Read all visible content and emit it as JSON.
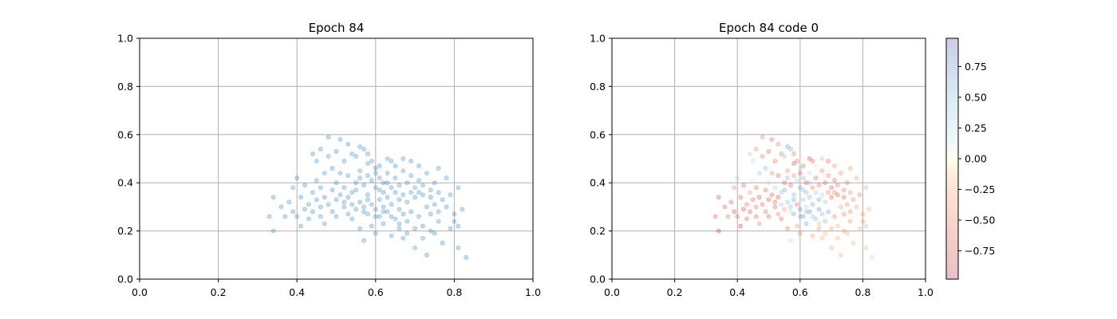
{
  "chart_data": [
    {
      "type": "scatter",
      "title": "Epoch 84",
      "xlim": [
        0,
        1
      ],
      "ylim": [
        0,
        1
      ],
      "xticks": [
        "0.0",
        "0.2",
        "0.4",
        "0.6",
        "0.8",
        "1.0"
      ],
      "yticks": [
        "0.0",
        "0.2",
        "0.4",
        "0.6",
        "0.8",
        "1.0"
      ],
      "grid": true,
      "color": "#1f77b4",
      "alpha": 0.25,
      "points_source": "shared_points"
    },
    {
      "type": "scatter",
      "title": "Epoch 84 code 0",
      "xlim": [
        0,
        1
      ],
      "ylim": [
        0,
        1
      ],
      "xticks": [
        "0.0",
        "0.2",
        "0.4",
        "0.6",
        "0.8",
        "1.0"
      ],
      "yticks": [
        "0.0",
        "0.2",
        "0.4",
        "0.6",
        "0.8",
        "1.0"
      ],
      "grid": true,
      "colormap": "RdYlBu",
      "alpha": 0.25,
      "colorbar": {
        "range": [
          -0.98,
          0.98
        ],
        "ticks": [
          -0.75,
          -0.5,
          -0.25,
          0.0,
          0.25,
          0.5,
          0.75
        ],
        "tick_labels": [
          "−0.75",
          "−0.50",
          "−0.25",
          "0.00",
          "0.25",
          "0.50",
          "0.75"
        ]
      },
      "points_source": "shared_points"
    }
  ],
  "shared_points": [
    [
      0.33,
      0.26,
      -0.6
    ],
    [
      0.34,
      0.34,
      -0.7
    ],
    [
      0.34,
      0.2,
      -0.8
    ],
    [
      0.36,
      0.3,
      -0.6
    ],
    [
      0.37,
      0.26,
      -0.5
    ],
    [
      0.38,
      0.32,
      -0.6
    ],
    [
      0.39,
      0.28,
      -0.7
    ],
    [
      0.39,
      0.38,
      -0.4
    ],
    [
      0.4,
      0.42,
      0.3
    ],
    [
      0.4,
      0.26,
      -0.6
    ],
    [
      0.41,
      0.34,
      -0.6
    ],
    [
      0.41,
      0.22,
      -0.8
    ],
    [
      0.42,
      0.29,
      -0.7
    ],
    [
      0.42,
      0.39,
      -0.6
    ],
    [
      0.43,
      0.31,
      -0.5
    ],
    [
      0.43,
      0.25,
      -0.6
    ],
    [
      0.44,
      0.36,
      -0.3
    ],
    [
      0.44,
      0.28,
      -0.7
    ],
    [
      0.45,
      0.41,
      0.1
    ],
    [
      0.45,
      0.33,
      -0.6
    ],
    [
      0.45,
      0.49,
      0.2
    ],
    [
      0.46,
      0.3,
      -0.5
    ],
    [
      0.46,
      0.26,
      -0.6
    ],
    [
      0.46,
      0.38,
      -0.6
    ],
    [
      0.47,
      0.44,
      0.4
    ],
    [
      0.47,
      0.34,
      -0.7
    ],
    [
      0.47,
      0.23,
      -0.4
    ],
    [
      0.48,
      0.51,
      -0.5
    ],
    [
      0.48,
      0.59,
      -0.4
    ],
    [
      0.48,
      0.31,
      -0.6
    ],
    [
      0.49,
      0.37,
      -0.6
    ],
    [
      0.49,
      0.28,
      -0.5
    ],
    [
      0.49,
      0.46,
      0.5
    ],
    [
      0.5,
      0.33,
      -0.7
    ],
    [
      0.5,
      0.4,
      0.2
    ],
    [
      0.5,
      0.26,
      -0.6
    ],
    [
      0.51,
      0.58,
      -0.6
    ],
    [
      0.51,
      0.44,
      -0.4
    ],
    [
      0.51,
      0.35,
      -0.6
    ],
    [
      0.52,
      0.3,
      -0.6
    ],
    [
      0.52,
      0.49,
      -0.5
    ],
    [
      0.52,
      0.38,
      0.3
    ],
    [
      0.53,
      0.27,
      -0.4
    ],
    [
      0.53,
      0.43,
      -0.6
    ],
    [
      0.53,
      0.34,
      -0.7
    ],
    [
      0.54,
      0.52,
      -0.5
    ],
    [
      0.54,
      0.31,
      0.4
    ],
    [
      0.54,
      0.25,
      -0.6
    ],
    [
      0.55,
      0.4,
      -0.6
    ],
    [
      0.55,
      0.37,
      0.6
    ],
    [
      0.55,
      0.29,
      -0.3
    ],
    [
      0.56,
      0.55,
      0.7
    ],
    [
      0.56,
      0.45,
      -0.4
    ],
    [
      0.56,
      0.32,
      0.5
    ],
    [
      0.56,
      0.21,
      -0.5
    ],
    [
      0.57,
      0.54,
      0.6
    ],
    [
      0.57,
      0.39,
      -0.6
    ],
    [
      0.57,
      0.28,
      0.2
    ],
    [
      0.57,
      0.16,
      0.2
    ],
    [
      0.58,
      0.48,
      -0.7
    ],
    [
      0.58,
      0.35,
      0.5
    ],
    [
      0.58,
      0.43,
      -0.4
    ],
    [
      0.58,
      0.27,
      0.6
    ],
    [
      0.59,
      0.41,
      0.3
    ],
    [
      0.59,
      0.31,
      -0.6
    ],
    [
      0.59,
      0.22,
      -0.3
    ],
    [
      0.59,
      0.49,
      -0.5
    ],
    [
      0.6,
      0.38,
      0.6
    ],
    [
      0.6,
      0.29,
      0.7
    ],
    [
      0.6,
      0.44,
      -0.6
    ],
    [
      0.6,
      0.19,
      -0.4
    ],
    [
      0.61,
      0.33,
      0.4
    ],
    [
      0.61,
      0.42,
      0.5
    ],
    [
      0.61,
      0.26,
      0.6
    ],
    [
      0.61,
      0.47,
      -0.5
    ],
    [
      0.62,
      0.36,
      0.5
    ],
    [
      0.62,
      0.3,
      0.3
    ],
    [
      0.62,
      0.4,
      -0.6
    ],
    [
      0.62,
      0.23,
      0.6
    ],
    [
      0.63,
      0.5,
      -0.8
    ],
    [
      0.63,
      0.34,
      0.5
    ],
    [
      0.63,
      0.28,
      0.7
    ],
    [
      0.63,
      0.44,
      0.2
    ],
    [
      0.64,
      0.38,
      -0.4
    ],
    [
      0.64,
      0.31,
      0.6
    ],
    [
      0.64,
      0.18,
      -0.3
    ],
    [
      0.65,
      0.42,
      -0.6
    ],
    [
      0.65,
      0.36,
      0.4
    ],
    [
      0.65,
      0.25,
      0.5
    ],
    [
      0.65,
      0.47,
      0.1
    ],
    [
      0.66,
      0.33,
      0.6
    ],
    [
      0.66,
      0.39,
      -0.5
    ],
    [
      0.66,
      0.29,
      0.7
    ],
    [
      0.66,
      0.21,
      -0.3
    ],
    [
      0.67,
      0.45,
      -0.4
    ],
    [
      0.67,
      0.35,
      0.3
    ],
    [
      0.67,
      0.27,
      0.5
    ],
    [
      0.67,
      0.17,
      -0.2
    ],
    [
      0.68,
      0.4,
      -0.6
    ],
    [
      0.68,
      0.32,
      0.4
    ],
    [
      0.68,
      0.24,
      0.5
    ],
    [
      0.69,
      0.43,
      -0.5
    ],
    [
      0.69,
      0.36,
      -0.4
    ],
    [
      0.69,
      0.28,
      0.6
    ],
    [
      0.69,
      0.49,
      -0.6
    ],
    [
      0.7,
      0.38,
      -0.7
    ],
    [
      0.7,
      0.34,
      -0.6
    ],
    [
      0.7,
      0.21,
      -0.3
    ],
    [
      0.7,
      0.13,
      -0.3
    ],
    [
      0.71,
      0.41,
      -0.6
    ],
    [
      0.71,
      0.36,
      -0.5
    ],
    [
      0.71,
      0.26,
      -0.4
    ],
    [
      0.71,
      0.47,
      -0.3
    ],
    [
      0.72,
      0.35,
      -0.6
    ],
    [
      0.72,
      0.39,
      -0.5
    ],
    [
      0.72,
      0.22,
      -0.2
    ],
    [
      0.73,
      0.3,
      -0.3
    ],
    [
      0.73,
      0.44,
      -0.4
    ],
    [
      0.73,
      0.1,
      -0.2
    ],
    [
      0.74,
      0.37,
      -0.5
    ],
    [
      0.74,
      0.27,
      -0.4
    ],
    [
      0.74,
      0.34,
      -0.6
    ],
    [
      0.75,
      0.4,
      -0.5
    ],
    [
      0.75,
      0.19,
      -0.2
    ],
    [
      0.75,
      0.31,
      -0.4
    ],
    [
      0.76,
      0.36,
      -0.4
    ],
    [
      0.76,
      0.24,
      -0.3
    ],
    [
      0.76,
      0.46,
      -0.3
    ],
    [
      0.77,
      0.33,
      -0.4
    ],
    [
      0.77,
      0.15,
      -0.2
    ],
    [
      0.78,
      0.3,
      -0.3
    ],
    [
      0.78,
      0.42,
      -0.3
    ],
    [
      0.79,
      0.35,
      -0.4
    ],
    [
      0.79,
      0.21,
      -0.2
    ],
    [
      0.8,
      0.27,
      -0.3
    ],
    [
      0.8,
      0.24,
      -0.3
    ],
    [
      0.81,
      0.38,
      -0.3
    ],
    [
      0.81,
      0.13,
      -0.2
    ],
    [
      0.81,
      0.22,
      -0.2
    ],
    [
      0.82,
      0.29,
      -0.2
    ],
    [
      0.83,
      0.09,
      0.2
    ],
    [
      0.44,
      0.52,
      0.3
    ],
    [
      0.46,
      0.54,
      -0.4
    ],
    [
      0.5,
      0.53,
      -0.6
    ],
    [
      0.53,
      0.56,
      -0.4
    ],
    [
      0.55,
      0.51,
      0.4
    ],
    [
      0.58,
      0.52,
      -0.5
    ],
    [
      0.6,
      0.46,
      0.3
    ],
    [
      0.64,
      0.49,
      -0.6
    ],
    [
      0.67,
      0.5,
      -0.2
    ],
    [
      0.56,
      0.42,
      0.5
    ],
    [
      0.54,
      0.36,
      0.4
    ],
    [
      0.58,
      0.33,
      0.6
    ],
    [
      0.61,
      0.37,
      0.5
    ],
    [
      0.63,
      0.4,
      0.4
    ],
    [
      0.52,
      0.32,
      -0.6
    ],
    [
      0.57,
      0.3,
      0.5
    ],
    [
      0.6,
      0.26,
      0.6
    ],
    [
      0.62,
      0.28,
      0.5
    ],
    [
      0.64,
      0.26,
      0.4
    ],
    [
      0.66,
      0.23,
      -0.2
    ],
    [
      0.68,
      0.19,
      -0.2
    ],
    [
      0.72,
      0.17,
      -0.2
    ],
    [
      0.74,
      0.2,
      -0.3
    ],
    [
      0.76,
      0.28,
      -0.4
    ]
  ]
}
